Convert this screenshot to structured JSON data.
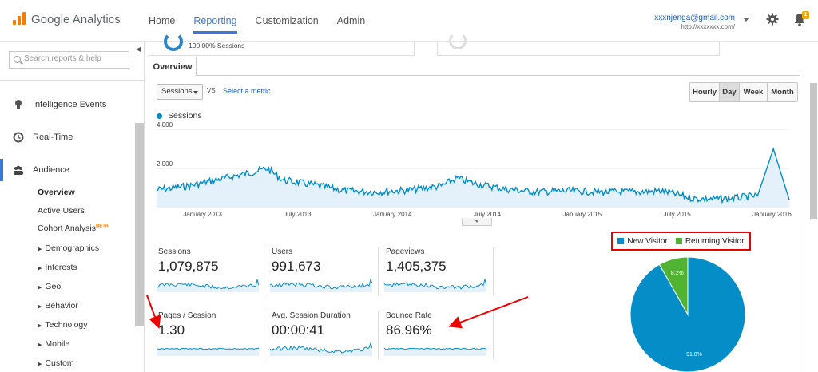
{
  "topbar": {
    "app_name": "Google Analytics",
    "nav": [
      "Home",
      "Reporting",
      "Customization",
      "Admin"
    ],
    "active_nav": "Reporting",
    "account_email": "xxxnjenga@gmail.com",
    "account_site": "http://xxxxxxx.com/",
    "notification_count": "1"
  },
  "sidebar": {
    "search_placeholder": "Search reports & help",
    "sections": [
      {
        "label": "Intelligence Events",
        "icon": "bulb-icon"
      },
      {
        "label": "Real-Time",
        "icon": "clock-icon"
      },
      {
        "label": "Audience",
        "icon": "people-icon"
      }
    ],
    "audience_items": [
      "Overview",
      "Active Users",
      "Cohort Analysis"
    ],
    "beta_label": "BETA",
    "sub_groups": [
      "Demographics",
      "Interests",
      "Geo",
      "Behavior",
      "Technology",
      "Mobile",
      "Custom"
    ]
  },
  "segment": {
    "sessions_pct": "100.00% Sessions"
  },
  "tab": {
    "label": "Overview"
  },
  "controls": {
    "metric": "Sessions",
    "vs": "VS.",
    "select_metric": "Select a metric",
    "time_buttons": [
      "Hourly",
      "Day",
      "Week",
      "Month"
    ],
    "selected_time": "Day"
  },
  "chart_data": {
    "type": "line",
    "title": "",
    "series": [
      {
        "name": "Sessions"
      }
    ],
    "y_ticks": [
      "4,000",
      "2,000"
    ],
    "ylim": [
      0,
      4000
    ],
    "x_ticks": [
      "January 2013",
      "July 2013",
      "January 2014",
      "July 2014",
      "January 2015",
      "July 2015",
      "January 2016"
    ],
    "x": [
      "2012-11",
      "2013-01",
      "2013-03",
      "2013-05",
      "2013-06",
      "2013-07",
      "2013-09",
      "2013-11",
      "2014-01",
      "2014-03",
      "2014-05",
      "2014-06",
      "2014-07",
      "2014-09",
      "2014-11",
      "2015-01",
      "2015-03",
      "2015-05",
      "2015-07",
      "2015-09",
      "2015-11",
      "2016-01",
      "2016-02",
      "2016-03"
    ],
    "values": [
      900,
      1100,
      1450,
      1800,
      2000,
      1400,
      1150,
      850,
      800,
      900,
      1100,
      1500,
      1250,
      950,
      800,
      850,
      800,
      800,
      850,
      450,
      450,
      600,
      3000,
      400
    ],
    "grid": true,
    "color": "#058dc7"
  },
  "metrics": [
    {
      "label": "Sessions",
      "value": "1,079,875"
    },
    {
      "label": "Users",
      "value": "991,673"
    },
    {
      "label": "Pageviews",
      "value": "1,405,375"
    },
    {
      "label": "Pages / Session",
      "value": "1.30"
    },
    {
      "label": "Avg. Session Duration",
      "value": "00:00:41"
    },
    {
      "label": "Bounce Rate",
      "value": "86.96%"
    }
  ],
  "pie": {
    "type": "pie",
    "legend": [
      {
        "name": "New Visitor",
        "color": "#058dc7"
      },
      {
        "name": "Returning Visitor",
        "color": "#50b432"
      }
    ],
    "slices": [
      {
        "name": "New Visitor",
        "value": 91.8,
        "label": "91.8%",
        "color": "#058dc7"
      },
      {
        "name": "Returning Visitor",
        "value": 8.2,
        "label": "8.2%",
        "color": "#50b432"
      }
    ]
  }
}
